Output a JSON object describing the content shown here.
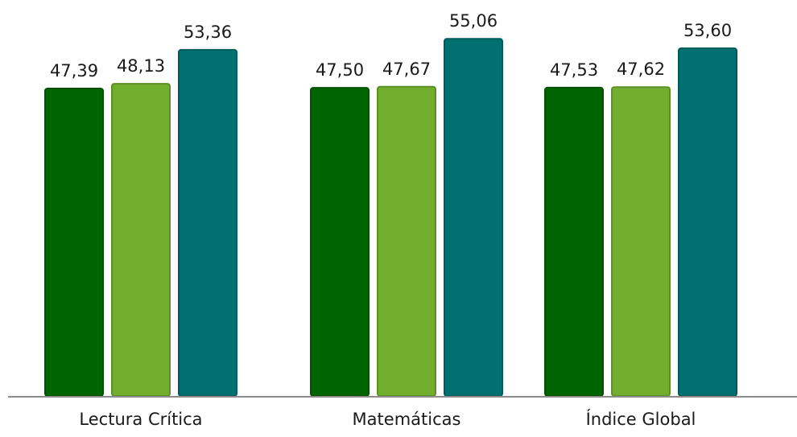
{
  "chart_data": {
    "type": "bar",
    "title": "",
    "xlabel": "",
    "ylabel": "",
    "categories": [
      "Lectura Crítica",
      "Matemáticas",
      "Índice Global"
    ],
    "series": [
      {
        "values": [
          47.39,
          47.5,
          47.53
        ],
        "labels": [
          "47,39",
          "47,50",
          "47,53"
        ],
        "color": "#006400"
      },
      {
        "values": [
          48.13,
          47.67,
          47.62
        ],
        "labels": [
          "48,13",
          "47,67",
          "47,62"
        ],
        "color": "#72AE2E"
      },
      {
        "values": [
          53.36,
          55.06,
          53.6
        ],
        "labels": [
          "53,36",
          "55,06",
          "53,60"
        ],
        "color": "#007070"
      }
    ],
    "ylim": [
      0,
      58
    ],
    "grid": false,
    "legend": "none"
  }
}
